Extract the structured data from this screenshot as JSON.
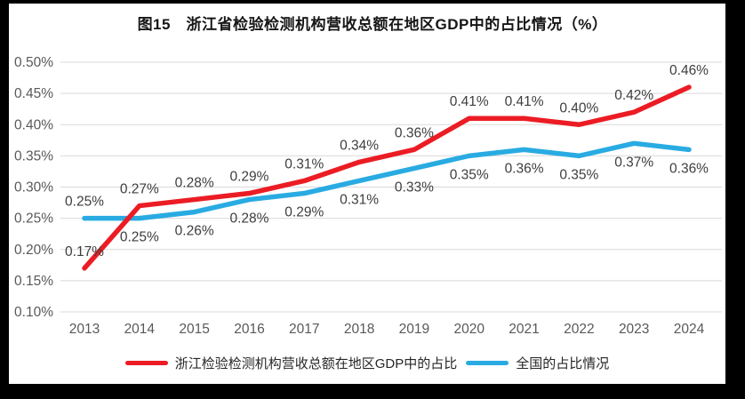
{
  "title": "图15　浙江省检验检测机构营收总额在地区GDP中的占比情况（%）",
  "chart_data": {
    "type": "line",
    "title": "图15　浙江省检验检测机构营收总额在地区GDP中的占比情况（%）",
    "x": [
      "2013",
      "2014",
      "2015",
      "2016",
      "2017",
      "2018",
      "2019",
      "2020",
      "2021",
      "2022",
      "2023",
      "2024"
    ],
    "series": [
      {
        "name": "浙江检验检测机构营收总额在地区GDP中的占比",
        "color": "#EC1C24",
        "values": [
          0.17,
          0.27,
          0.28,
          0.29,
          0.31,
          0.34,
          0.36,
          0.41,
          0.41,
          0.4,
          0.42,
          0.46
        ],
        "data_labels": [
          "0.17%",
          "0.27%",
          "0.28%",
          "0.29%",
          "0.31%",
          "0.34%",
          "0.36%",
          "0.41%",
          "0.41%",
          "0.40%",
          "0.42%",
          "0.46%"
        ],
        "label_position": "above"
      },
      {
        "name": "全国的占比情况",
        "color": "#29ABE2",
        "values": [
          0.25,
          0.25,
          0.26,
          0.28,
          0.29,
          0.31,
          0.33,
          0.35,
          0.36,
          0.35,
          0.37,
          0.36
        ],
        "data_labels": [
          "0.25%",
          "0.25%",
          "0.26%",
          "0.28%",
          "0.29%",
          "0.31%",
          "0.33%",
          "0.35%",
          "0.36%",
          "0.35%",
          "0.37%",
          "0.36%"
        ],
        "label_position": "below",
        "label_position_overrides": {
          "0": "above"
        }
      }
    ],
    "ylim": [
      0.1,
      0.5
    ],
    "yticks": [
      0.1,
      0.15,
      0.2,
      0.25,
      0.3,
      0.35,
      0.4,
      0.45,
      0.5
    ],
    "ytick_labels": [
      "0.10%",
      "0.15%",
      "0.20%",
      "0.25%",
      "0.30%",
      "0.35%",
      "0.40%",
      "0.45%",
      "0.50%"
    ],
    "grid": true,
    "gridline_color": "#D9D9D9",
    "axis_label_color": "#595959",
    "data_label_color": "#3D3D3D",
    "legend_position": "bottom"
  }
}
